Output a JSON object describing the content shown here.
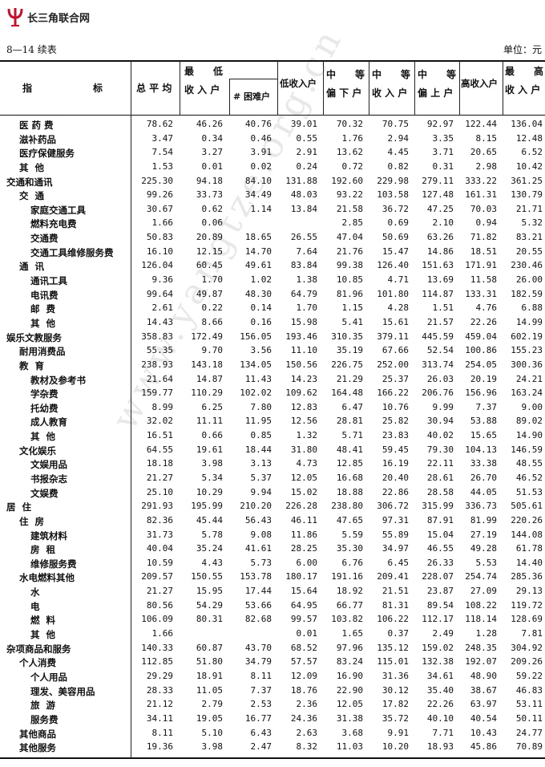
{
  "logo": {
    "text": "长三角联合网",
    "icon": "psi-logo-icon",
    "color": "#c8102e"
  },
  "table_title": "8—14  续表",
  "unit": "单位：元",
  "watermark": "www.yangtze.org.cn",
  "headers": {
    "indicator": [
      "指",
      "标"
    ],
    "avg": "总 平 均",
    "lowest": [
      "最　　低",
      "收 入 户"
    ],
    "hardship": "# 困难户",
    "low": "低收入户",
    "mid_low": [
      "中　　等",
      "偏 下 户"
    ],
    "mid": [
      "中　　等",
      "收 入 户"
    ],
    "mid_high": [
      "中　　等",
      "偏 上 户"
    ],
    "high": "高收入户",
    "highest": [
      "最　　高",
      "收 入 户"
    ]
  },
  "rows": [
    {
      "label": "医 药 费",
      "level": 1,
      "values": [
        "78.62",
        "46.26",
        "40.76",
        "39.01",
        "70.32",
        "70.75",
        "92.97",
        "122.44",
        "136.04"
      ]
    },
    {
      "label": "滋补药品",
      "level": 1,
      "values": [
        "3.47",
        "0.34",
        "0.46",
        "0.55",
        "1.76",
        "2.94",
        "3.35",
        "8.15",
        "12.48"
      ]
    },
    {
      "label": "医疗保健服务",
      "level": 1,
      "values": [
        "7.54",
        "3.27",
        "3.91",
        "2.91",
        "13.62",
        "4.45",
        "3.71",
        "20.65",
        "6.52"
      ]
    },
    {
      "label": "其  他",
      "level": 1,
      "values": [
        "1.53",
        "0.01",
        "0.02",
        "0.24",
        "0.72",
        "0.82",
        "0.31",
        "2.98",
        "10.42"
      ]
    },
    {
      "label": "交通和通讯",
      "level": 0,
      "values": [
        "225.30",
        "94.18",
        "84.10",
        "131.88",
        "192.60",
        "229.98",
        "279.11",
        "333.22",
        "361.25"
      ]
    },
    {
      "label": "交  通",
      "level": 1,
      "values": [
        "99.26",
        "33.73",
        "34.49",
        "48.03",
        "93.22",
        "103.58",
        "127.48",
        "161.31",
        "130.79"
      ]
    },
    {
      "label": "家庭交通工具",
      "level": 2,
      "values": [
        "30.67",
        "0.62",
        "1.14",
        "13.84",
        "21.58",
        "36.72",
        "47.25",
        "70.03",
        "21.71"
      ]
    },
    {
      "label": "燃料充电费",
      "level": 2,
      "values": [
        "1.66",
        "0.06",
        "",
        "",
        "2.85",
        "0.69",
        "2.10",
        "0.94",
        "5.32"
      ]
    },
    {
      "label": "交通费",
      "level": 2,
      "values": [
        "50.83",
        "20.89",
        "18.65",
        "26.55",
        "47.04",
        "50.69",
        "63.26",
        "71.82",
        "83.21"
      ]
    },
    {
      "label": "交通工具维修服务费",
      "level": 2,
      "values": [
        "16.10",
        "12.15",
        "14.70",
        "7.64",
        "21.76",
        "15.47",
        "14.86",
        "18.51",
        "20.55"
      ]
    },
    {
      "label": "通  讯",
      "level": 1,
      "values": [
        "126.04",
        "60.45",
        "49.61",
        "83.84",
        "99.38",
        "126.40",
        "151.63",
        "171.91",
        "230.46"
      ]
    },
    {
      "label": "通讯工具",
      "level": 2,
      "values": [
        "9.36",
        "1.70",
        "1.02",
        "1.38",
        "10.85",
        "4.71",
        "13.69",
        "11.58",
        "26.00"
      ]
    },
    {
      "label": "电讯费",
      "level": 2,
      "values": [
        "99.64",
        "49.87",
        "48.30",
        "64.79",
        "81.96",
        "101.80",
        "114.87",
        "133.31",
        "182.59"
      ]
    },
    {
      "label": "邮  费",
      "level": 2,
      "values": [
        "2.61",
        "0.22",
        "0.14",
        "1.70",
        "1.15",
        "4.28",
        "1.51",
        "4.76",
        "6.88"
      ]
    },
    {
      "label": "其  他",
      "level": 2,
      "values": [
        "14.43",
        "8.66",
        "0.16",
        "15.98",
        "5.41",
        "15.61",
        "21.57",
        "22.26",
        "14.99"
      ]
    },
    {
      "label": "娱乐文教服务",
      "level": 0,
      "values": [
        "358.83",
        "172.49",
        "156.05",
        "193.46",
        "310.35",
        "379.11",
        "445.59",
        "459.04",
        "602.19"
      ]
    },
    {
      "label": "耐用消费品",
      "level": 1,
      "values": [
        "55.35",
        "9.70",
        "3.56",
        "11.10",
        "35.19",
        "67.66",
        "52.54",
        "100.86",
        "155.23"
      ]
    },
    {
      "label": "教  育",
      "level": 1,
      "values": [
        "238.93",
        "143.18",
        "134.05",
        "150.56",
        "226.75",
        "252.00",
        "313.74",
        "254.05",
        "300.36"
      ]
    },
    {
      "label": "教材及参考书",
      "level": 2,
      "values": [
        "21.64",
        "14.87",
        "11.43",
        "14.23",
        "21.29",
        "25.37",
        "26.03",
        "20.19",
        "24.21"
      ]
    },
    {
      "label": "学杂费",
      "level": 2,
      "values": [
        "159.77",
        "110.29",
        "102.02",
        "109.62",
        "164.48",
        "166.22",
        "206.76",
        "156.96",
        "163.24"
      ]
    },
    {
      "label": "托幼费",
      "level": 2,
      "values": [
        "8.99",
        "6.25",
        "7.80",
        "12.83",
        "6.47",
        "10.76",
        "9.99",
        "7.37",
        "9.00"
      ]
    },
    {
      "label": "成人教育",
      "level": 2,
      "values": [
        "32.02",
        "11.11",
        "11.95",
        "12.56",
        "28.81",
        "25.82",
        "30.94",
        "53.88",
        "89.02"
      ]
    },
    {
      "label": "其  他",
      "level": 2,
      "values": [
        "16.51",
        "0.66",
        "0.85",
        "1.32",
        "5.71",
        "23.83",
        "40.02",
        "15.65",
        "14.90"
      ]
    },
    {
      "label": "文化娱乐",
      "level": 1,
      "values": [
        "64.55",
        "19.61",
        "18.44",
        "31.80",
        "48.41",
        "59.45",
        "79.30",
        "104.13",
        "146.59"
      ]
    },
    {
      "label": "文娱用品",
      "level": 2,
      "values": [
        "18.18",
        "3.98",
        "3.13",
        "4.73",
        "12.85",
        "16.19",
        "22.11",
        "33.38",
        "48.55"
      ]
    },
    {
      "label": "书报杂志",
      "level": 2,
      "values": [
        "21.27",
        "5.34",
        "5.37",
        "12.05",
        "16.68",
        "20.40",
        "28.61",
        "26.70",
        "46.52"
      ]
    },
    {
      "label": "文娱费",
      "level": 2,
      "values": [
        "25.10",
        "10.29",
        "9.94",
        "15.02",
        "18.88",
        "22.86",
        "28.58",
        "44.05",
        "51.53"
      ]
    },
    {
      "label": "居  住",
      "level": 0,
      "values": [
        "291.93",
        "195.99",
        "210.20",
        "226.28",
        "238.80",
        "306.72",
        "315.99",
        "336.73",
        "505.61"
      ]
    },
    {
      "label": "住  房",
      "level": 1,
      "values": [
        "82.36",
        "45.44",
        "56.43",
        "46.11",
        "47.65",
        "97.31",
        "87.91",
        "81.99",
        "220.26"
      ]
    },
    {
      "label": "建筑材料",
      "level": 2,
      "values": [
        "31.73",
        "5.78",
        "9.08",
        "11.86",
        "5.59",
        "55.89",
        "15.04",
        "27.19",
        "144.08"
      ]
    },
    {
      "label": "房  租",
      "level": 2,
      "values": [
        "40.04",
        "35.24",
        "41.61",
        "28.25",
        "35.30",
        "34.97",
        "46.55",
        "49.28",
        "61.78"
      ]
    },
    {
      "label": "维修服务费",
      "level": 2,
      "values": [
        "10.59",
        "4.43",
        "5.73",
        "6.00",
        "6.76",
        "6.45",
        "26.33",
        "5.53",
        "14.40"
      ]
    },
    {
      "label": "水电燃料其他",
      "level": 1,
      "values": [
        "209.57",
        "150.55",
        "153.78",
        "180.17",
        "191.16",
        "209.41",
        "228.07",
        "254.74",
        "285.36"
      ]
    },
    {
      "label": "水",
      "level": 2,
      "values": [
        "21.27",
        "15.95",
        "17.44",
        "15.64",
        "18.92",
        "21.51",
        "23.87",
        "27.09",
        "29.13"
      ]
    },
    {
      "label": "电",
      "level": 2,
      "values": [
        "80.56",
        "54.29",
        "53.66",
        "64.95",
        "66.77",
        "81.31",
        "89.54",
        "108.22",
        "119.72"
      ]
    },
    {
      "label": "燃  料",
      "level": 2,
      "values": [
        "106.09",
        "80.31",
        "82.68",
        "99.57",
        "103.82",
        "106.22",
        "112.17",
        "118.14",
        "128.69"
      ]
    },
    {
      "label": "其  他",
      "level": 2,
      "values": [
        "1.66",
        "",
        "",
        "0.01",
        "1.65",
        "0.37",
        "2.49",
        "1.28",
        "7.81"
      ]
    },
    {
      "label": "杂项商品和服务",
      "level": 0,
      "values": [
        "140.33",
        "60.87",
        "43.70",
        "68.52",
        "97.96",
        "135.12",
        "159.02",
        "248.35",
        "304.92"
      ]
    },
    {
      "label": "个人消费",
      "level": 1,
      "values": [
        "112.85",
        "51.80",
        "34.79",
        "57.57",
        "83.24",
        "115.01",
        "132.38",
        "192.07",
        "209.26"
      ]
    },
    {
      "label": "个人用品",
      "level": 2,
      "values": [
        "29.29",
        "18.91",
        "8.11",
        "12.09",
        "16.90",
        "31.36",
        "34.61",
        "48.90",
        "59.22"
      ]
    },
    {
      "label": "理发、美容用品",
      "level": 2,
      "values": [
        "28.33",
        "11.05",
        "7.37",
        "18.76",
        "22.90",
        "30.12",
        "35.40",
        "38.67",
        "46.83"
      ]
    },
    {
      "label": "旅  游",
      "level": 2,
      "values": [
        "21.12",
        "2.79",
        "2.53",
        "2.36",
        "12.05",
        "17.82",
        "22.26",
        "63.97",
        "53.11"
      ]
    },
    {
      "label": "服务费",
      "level": 2,
      "values": [
        "34.11",
        "19.05",
        "16.77",
        "24.36",
        "31.38",
        "35.72",
        "40.10",
        "40.54",
        "50.11"
      ]
    },
    {
      "label": "其他商品",
      "level": 1,
      "values": [
        "8.11",
        "5.10",
        "6.43",
        "2.63",
        "3.68",
        "9.91",
        "7.71",
        "10.43",
        "24.77"
      ]
    },
    {
      "label": "其他服务",
      "level": 1,
      "values": [
        "19.36",
        "3.98",
        "2.47",
        "8.32",
        "11.03",
        "10.20",
        "18.93",
        "45.86",
        "70.89"
      ]
    }
  ]
}
